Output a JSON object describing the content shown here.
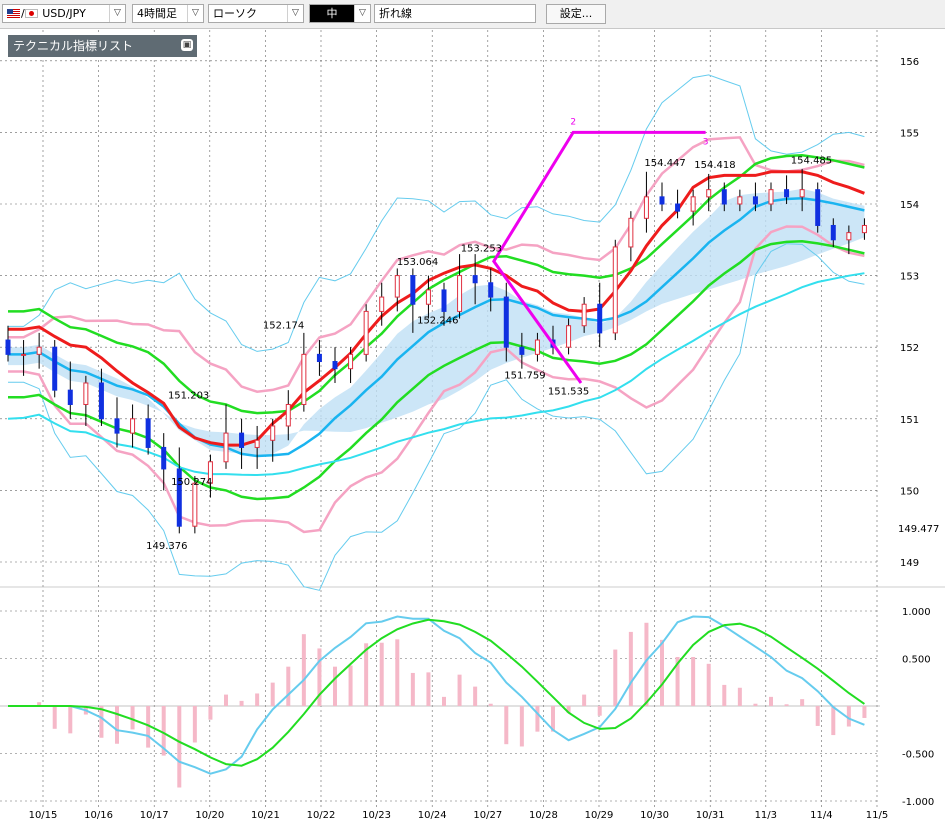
{
  "toolbar": {
    "symbol": "USD/JPY",
    "timeframe": "4時間足",
    "chart_type": "ローソク",
    "line_weight": "中",
    "draw_tool": "折れ線",
    "settings_label": "設定..."
  },
  "indicator_panel": {
    "title": "テクニカル指標リスト",
    "collapse_glyph": "▣"
  },
  "colors": {
    "bull_candle": "#e03040",
    "bear_candle": "#1030e0",
    "red_line": "#ee1c1c",
    "green_line": "#22dd22",
    "blue_line": "#1ab4f0",
    "cyan_line": "#33dfee",
    "pink_band": "#f5a3c3",
    "light_blue_band": "#66ccee",
    "cloud_blue": "#bfe0f5",
    "cloud_pink": "#f8c8dc",
    "zigzag": "#ee00ee",
    "macd_hist": "#f5b8c8"
  },
  "chart_data": [
    {
      "type": "line",
      "name": "price",
      "x_ticks": [
        "10/15",
        "10/16",
        "10/17",
        "10/20",
        "10/21",
        "10/22",
        "10/23",
        "10/24",
        "10/27",
        "10/28",
        "10/29",
        "10/30",
        "10/31",
        "11/3",
        "11/4",
        "11/5"
      ],
      "y_ticks": [
        149,
        150,
        151,
        152,
        153,
        154,
        155,
        156
      ],
      "ylim": [
        148.7,
        156.2
      ],
      "current_price_label": "149.477",
      "annotations": [
        {
          "text": "149.376",
          "x": 10.2,
          "y": 149.376
        },
        {
          "text": "151.203",
          "x": 11.6,
          "y": 151.203
        },
        {
          "text": "150.274",
          "x": 11.8,
          "y": 150.274
        },
        {
          "text": "152.174",
          "x": 17.7,
          "y": 152.174
        },
        {
          "text": "153.064",
          "x": 26.3,
          "y": 153.064
        },
        {
          "text": "152.246",
          "x": 27.6,
          "y": 152.246
        },
        {
          "text": "153.253",
          "x": 30.4,
          "y": 153.253
        },
        {
          "text": "151.759",
          "x": 33.2,
          "y": 151.759
        },
        {
          "text": "151.535",
          "x": 36.0,
          "y": 151.535
        },
        {
          "text": "154.447",
          "x": 42.2,
          "y": 154.447
        },
        {
          "text": "154.418",
          "x": 45.4,
          "y": 154.418
        },
        {
          "text": "154.485",
          "x": 51.6,
          "y": 154.485
        }
      ],
      "zigzag_labels": [
        "2",
        "3"
      ],
      "zigzag": [
        [
          31.2,
          153.2
        ],
        [
          36.8,
          151.5
        ],
        [
          31.2,
          153.2
        ],
        [
          36.3,
          155.0
        ],
        [
          44.8,
          155.0
        ]
      ],
      "candles_ohlc": [
        [
          152.1,
          152.3,
          151.8,
          151.9
        ],
        [
          151.9,
          152.1,
          151.6,
          151.9
        ],
        [
          151.9,
          152.2,
          151.7,
          152.0
        ],
        [
          152.0,
          152.1,
          151.3,
          151.4
        ],
        [
          151.4,
          151.8,
          151.0,
          151.2
        ],
        [
          151.2,
          151.6,
          150.9,
          151.5
        ],
        [
          151.5,
          151.7,
          150.9,
          151.0
        ],
        [
          151.0,
          151.3,
          150.6,
          150.8
        ],
        [
          150.8,
          151.2,
          150.6,
          151.0
        ],
        [
          151.0,
          151.2,
          150.5,
          150.6
        ],
        [
          150.6,
          150.8,
          150.0,
          150.3
        ],
        [
          150.3,
          150.6,
          149.4,
          149.5
        ],
        [
          149.5,
          150.2,
          149.4,
          150.1
        ],
        [
          150.1,
          150.5,
          149.9,
          150.4
        ],
        [
          150.4,
          151.2,
          150.3,
          150.8
        ],
        [
          150.8,
          151.0,
          150.3,
          150.6
        ],
        [
          150.6,
          150.9,
          150.3,
          150.7
        ],
        [
          150.7,
          151.0,
          150.4,
          150.9
        ],
        [
          150.9,
          151.4,
          150.7,
          151.2
        ],
        [
          151.2,
          152.2,
          151.1,
          151.9
        ],
        [
          151.9,
          152.1,
          151.6,
          151.8
        ],
        [
          151.8,
          152.0,
          151.5,
          151.7
        ],
        [
          151.7,
          152.0,
          151.5,
          151.9
        ],
        [
          151.9,
          152.6,
          151.8,
          152.5
        ],
        [
          152.5,
          152.9,
          152.3,
          152.7
        ],
        [
          152.7,
          153.1,
          152.5,
          153.0
        ],
        [
          153.0,
          153.1,
          152.2,
          152.6
        ],
        [
          152.6,
          153.0,
          152.4,
          152.8
        ],
        [
          152.8,
          152.9,
          152.3,
          152.5
        ],
        [
          152.5,
          153.3,
          152.4,
          153.0
        ],
        [
          153.0,
          153.3,
          152.6,
          152.9
        ],
        [
          152.9,
          153.1,
          152.5,
          152.7
        ],
        [
          152.7,
          152.9,
          151.8,
          152.0
        ],
        [
          152.0,
          152.2,
          151.7,
          151.9
        ],
        [
          151.9,
          152.2,
          151.8,
          152.1
        ],
        [
          152.1,
          152.3,
          151.9,
          152.0
        ],
        [
          152.0,
          152.4,
          151.9,
          152.3
        ],
        [
          152.3,
          152.7,
          152.2,
          152.6
        ],
        [
          152.6,
          152.9,
          152.0,
          152.2
        ],
        [
          152.2,
          153.5,
          152.1,
          153.4
        ],
        [
          153.4,
          153.9,
          153.2,
          153.8
        ],
        [
          153.8,
          154.45,
          153.6,
          154.1
        ],
        [
          154.1,
          154.3,
          153.9,
          154.0
        ],
        [
          154.0,
          154.2,
          153.8,
          153.9
        ],
        [
          153.9,
          154.2,
          153.7,
          154.1
        ],
        [
          154.1,
          154.42,
          153.9,
          154.2
        ],
        [
          154.2,
          154.3,
          153.9,
          154.0
        ],
        [
          154.0,
          154.2,
          153.9,
          154.1
        ],
        [
          154.1,
          154.3,
          153.9,
          154.0
        ],
        [
          154.0,
          154.3,
          153.9,
          154.2
        ],
        [
          154.2,
          154.4,
          154.0,
          154.1
        ],
        [
          154.1,
          154.49,
          153.9,
          154.2
        ],
        [
          154.2,
          154.3,
          153.6,
          153.7
        ],
        [
          153.7,
          153.8,
          153.4,
          153.5
        ],
        [
          153.5,
          153.7,
          153.3,
          153.6
        ],
        [
          153.6,
          153.8,
          153.5,
          153.7
        ]
      ]
    },
    {
      "type": "line",
      "name": "oscillator",
      "y_ticks": [
        -1.0,
        -0.5,
        0.5,
        1.0
      ],
      "y_tick_labels": [
        "-1.000",
        "-0.500",
        "0.500",
        "1.000"
      ],
      "ylim": [
        -1.0,
        1.0
      ]
    }
  ]
}
